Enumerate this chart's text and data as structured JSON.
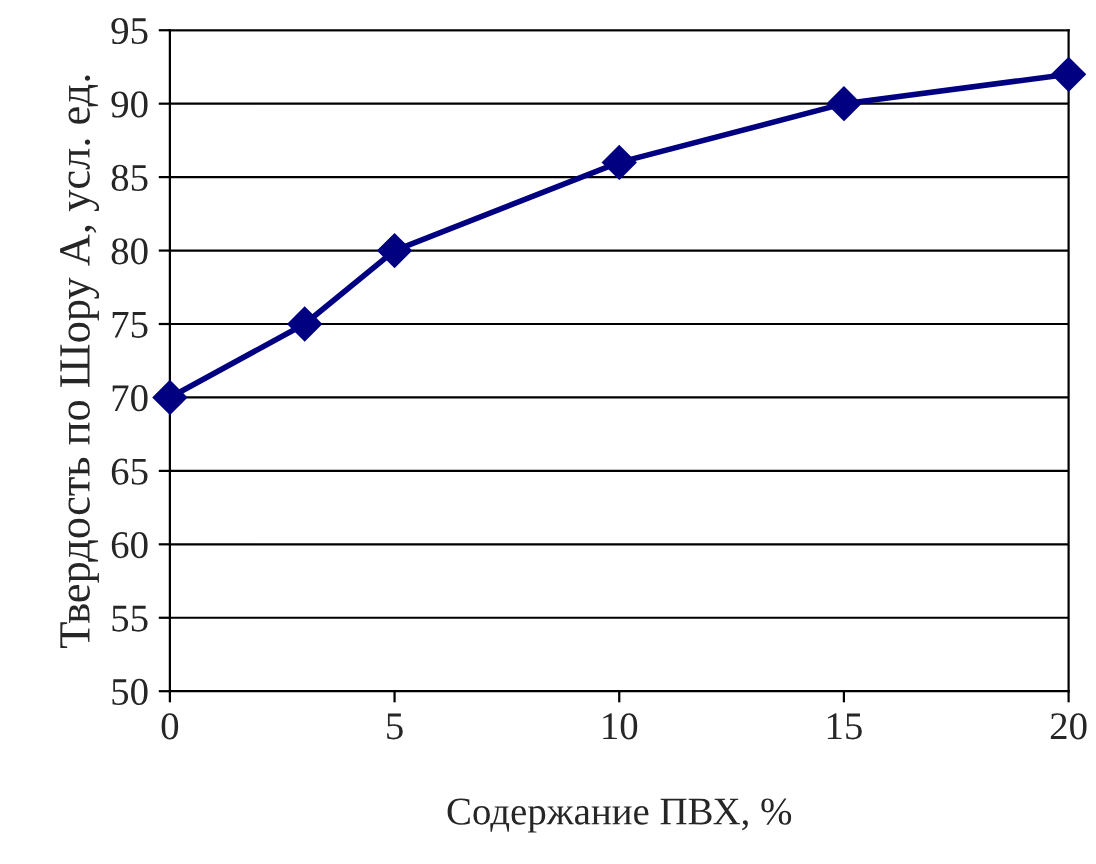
{
  "chart_data": {
    "type": "line",
    "xlabel": "Содержание ПВХ, %",
    "ylabel": "Твердость по Шору А, усл. ед.",
    "x": [
      0,
      3,
      5,
      10,
      15,
      20
    ],
    "series": [
      {
        "color": "#000080",
        "values": [
          70,
          75,
          80,
          86,
          90,
          92
        ]
      }
    ],
    "xlim": [
      0,
      20
    ],
    "xticks": [
      0,
      5,
      10,
      15,
      20
    ],
    "ylim": [
      50,
      95
    ],
    "yticks": [
      50,
      55,
      60,
      65,
      70,
      75,
      80,
      85,
      90,
      95
    ],
    "grid": "y",
    "marker": "diamond",
    "line_style": "solid",
    "legend": false
  }
}
